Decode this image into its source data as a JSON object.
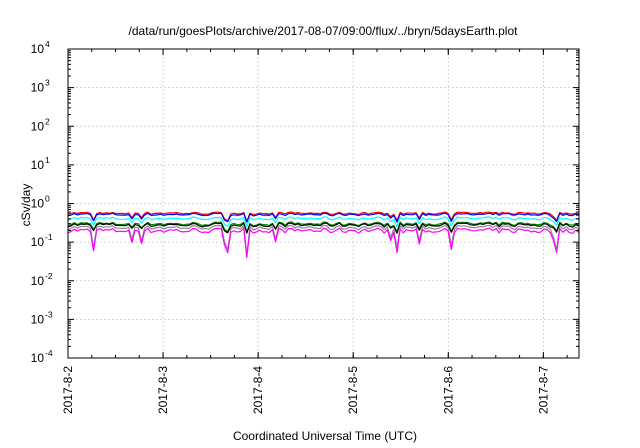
{
  "chart_data": {
    "type": "line",
    "title": "/data/run/goesPlots/archive/2017-08-07/09:00/flux/../bryn/5daysEarth.plot",
    "xlabel": "Coordinated Universal Time (UTC)",
    "ylabel": "cSv/day",
    "yscale": "log",
    "ylim": [
      0.0001,
      10000
    ],
    "xlim": [
      "2017-08-02T00:00",
      "2017-08-07T09:00"
    ],
    "grid": true,
    "legend": "none",
    "x_ticks": [
      "2017-8-2",
      "2017-8-3",
      "2017-8-4",
      "2017-8-5",
      "2017-8-6",
      "2017-8-7"
    ],
    "y_ticks": [
      {
        "base": "10",
        "exp": "4"
      },
      {
        "base": "10",
        "exp": "3"
      },
      {
        "base": "10",
        "exp": "2"
      },
      {
        "base": "10",
        "exp": "1"
      },
      {
        "base": "10",
        "exp": "0"
      },
      {
        "base": "10",
        "exp": "-1"
      },
      {
        "base": "10",
        "exp": "-2"
      },
      {
        "base": "10",
        "exp": "-3"
      },
      {
        "base": "10",
        "exp": "-4"
      }
    ],
    "series": [
      {
        "color": "#ff0000",
        "base": 0.56
      },
      {
        "color": "#0000ff",
        "base": 0.52
      },
      {
        "color": "#00ffff",
        "base": 0.41
      },
      {
        "color": "#008800",
        "base": 0.3
      },
      {
        "color": "#000000",
        "base": 0.28
      },
      {
        "color": "#888888",
        "base": 0.24
      },
      {
        "color": "#ff00ff",
        "base": 0.2
      }
    ]
  }
}
